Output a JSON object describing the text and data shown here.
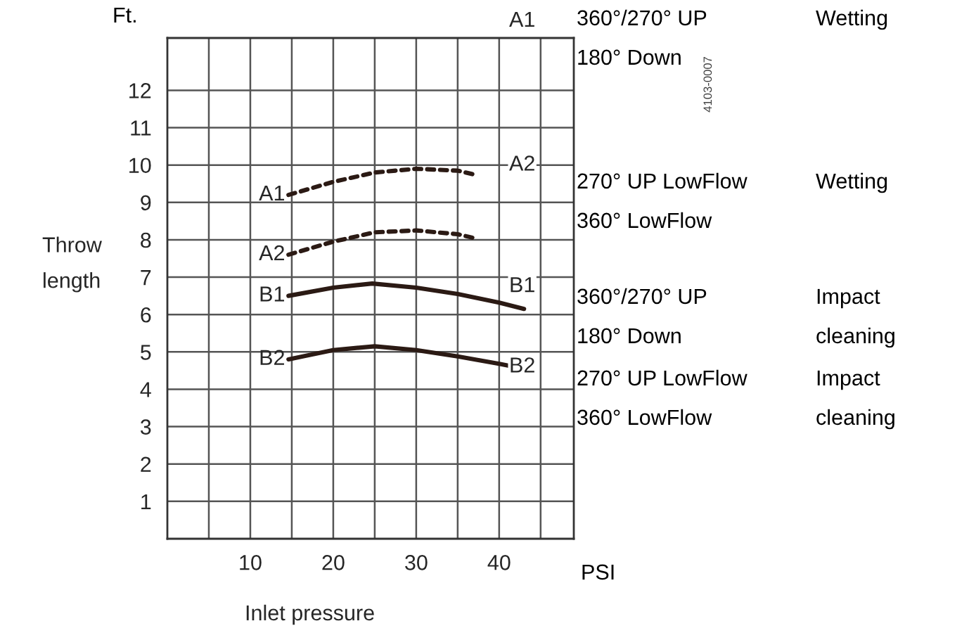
{
  "chart_data": {
    "type": "line",
    "xlabel": "Inlet pressure",
    "ylabel": "Throw\nlength",
    "xlim": [
      0,
      49
    ],
    "ylim": [
      0,
      13.4
    ],
    "xticks": [
      10,
      20,
      30,
      40
    ],
    "yticks": [
      1,
      2,
      3,
      4,
      5,
      6,
      7,
      8,
      9,
      10,
      11,
      12
    ],
    "grid": true,
    "legend": false,
    "series": [
      {
        "name": "A1",
        "color": "#2b1a14",
        "line_style": "dotted",
        "x": [
          14.6,
          20,
          25,
          30,
          35,
          36.9
        ],
        "values": [
          9.2,
          9.55,
          9.8,
          9.9,
          9.85,
          9.75
        ]
      },
      {
        "name": "A2",
        "color": "#2b1a14",
        "line_style": "dotted",
        "x": [
          14.6,
          20,
          25,
          30,
          35,
          36.9
        ],
        "values": [
          7.6,
          7.95,
          8.2,
          8.25,
          8.15,
          8.05
        ]
      },
      {
        "name": "B1",
        "color": "#2b1a14",
        "line_style": "solid",
        "x": [
          14.6,
          20,
          24.7,
          30,
          35,
          40,
          43
        ],
        "values": [
          6.5,
          6.72,
          6.83,
          6.72,
          6.55,
          6.32,
          6.15
        ]
      },
      {
        "name": "B2",
        "color": "#2b1a14",
        "line_style": "solid",
        "x": [
          14.6,
          20,
          25,
          30,
          35,
          40,
          43
        ],
        "values": [
          4.8,
          5.05,
          5.15,
          5.05,
          4.88,
          4.68,
          4.55
        ]
      }
    ],
    "annotations": [
      "Ft.",
      "PSI",
      "4103-0007",
      "360°/270° UP",
      "180° Down",
      "Wetting",
      "270° UP LowFlow",
      "360° LowFlow",
      "Wetting",
      "360°/270° UP",
      "180° Down",
      "Impact",
      "cleaning",
      "270° UP LowFlow",
      "360° LowFlow",
      "Impact",
      "cleaning"
    ]
  }
}
